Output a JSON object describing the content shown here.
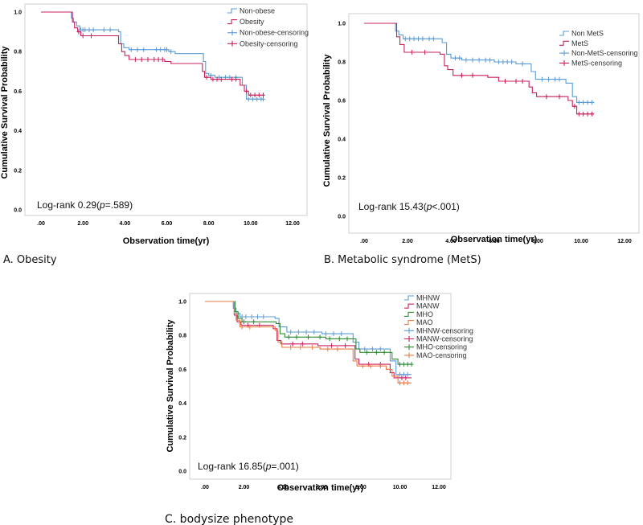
{
  "figure": {
    "captions": [
      "A. Obesity",
      "B. Metabolic syndrome (MetS)",
      "C. bodysize phenotype"
    ]
  },
  "chart_data": [
    {
      "type": "line",
      "panel": "A",
      "caption": "A. Obesity",
      "xlabel": "Observation time(yr)",
      "ylabel": "Cumulative Survival Probability",
      "xlim": [
        0,
        12
      ],
      "ylim": [
        0,
        1
      ],
      "xticks": [
        ".00",
        "2.00",
        "4.00",
        "6.00",
        "8.00",
        "10.00",
        "12.00"
      ],
      "yticks": [
        "0.0",
        "0.2",
        "0.4",
        "0.6",
        "0.8",
        "1.0"
      ],
      "legend_position": "top-center",
      "annotation": {
        "prefix": "Log-rank 0.29(",
        "p": "p",
        "suffix": "=.589)"
      },
      "series": [
        {
          "name": "Non-obese",
          "censor_name": "Non-obese-censoring",
          "color": "#5b9bd5",
          "x": [
            0,
            1.45,
            1.55,
            1.7,
            1.85,
            3.7,
            3.8,
            3.95,
            4.2,
            6.1,
            6.4,
            7.75,
            7.85,
            8.0,
            8.3,
            9.6,
            9.8
          ],
          "y": [
            1.0,
            0.97,
            0.95,
            0.93,
            0.91,
            0.9,
            0.84,
            0.82,
            0.81,
            0.8,
            0.79,
            0.75,
            0.69,
            0.68,
            0.67,
            0.63,
            0.56
          ],
          "censor": [
            1.9,
            2.0,
            2.1,
            2.3,
            2.5,
            3.0,
            3.3,
            4.3,
            4.6,
            4.9,
            5.5,
            5.7,
            5.9,
            6.0,
            6.2,
            8.1,
            8.5,
            8.8,
            9.0,
            9.3,
            9.9,
            10.1,
            10.3,
            10.5,
            10.6
          ]
        },
        {
          "name": "Obesity",
          "censor_name": "Obesity-censoring",
          "color": "#c8205e",
          "x": [
            0,
            1.5,
            1.6,
            1.75,
            1.9,
            3.7,
            3.85,
            4.0,
            4.2,
            5.9,
            6.2,
            7.7,
            7.8,
            8.1,
            9.5,
            9.7,
            9.9
          ],
          "y": [
            1.0,
            0.95,
            0.92,
            0.9,
            0.88,
            0.84,
            0.8,
            0.78,
            0.76,
            0.75,
            0.74,
            0.7,
            0.67,
            0.66,
            0.63,
            0.6,
            0.58
          ],
          "censor": [
            1.8,
            2.0,
            2.4,
            4.5,
            4.8,
            5.1,
            5.4,
            5.6,
            5.8,
            7.9,
            8.2,
            8.4,
            8.6,
            9.1,
            9.3,
            9.8,
            10.0,
            10.2,
            10.4,
            10.6
          ]
        }
      ]
    },
    {
      "type": "line",
      "panel": "B",
      "caption": "B. Metabolic syndrome (MetS)",
      "xlabel": "Observation time(yr)",
      "ylabel": "Cumulative Survival Probability",
      "xlim": [
        0,
        12
      ],
      "ylim": [
        0,
        1
      ],
      "xticks": [
        ".00",
        "2.00",
        "4.00",
        "6.00",
        "8.00",
        "10.00",
        "12.00"
      ],
      "yticks": [
        "0.0",
        "0.2",
        "0.4",
        "0.6",
        "0.8",
        "1.0"
      ],
      "legend_position": "right",
      "annotation": {
        "prefix": "Log-rank 15.43(",
        "p": "p",
        "suffix": "<.001)"
      },
      "series": [
        {
          "name": "Non MetS",
          "censor_name": "Non-MetS-censoring",
          "color": "#5b9bd5",
          "x": [
            0,
            1.45,
            1.6,
            1.8,
            3.6,
            3.8,
            4.0,
            4.5,
            6.0,
            7.0,
            7.7,
            7.9,
            9.3,
            9.6,
            9.8
          ],
          "y": [
            1.0,
            0.96,
            0.94,
            0.92,
            0.9,
            0.84,
            0.82,
            0.81,
            0.8,
            0.79,
            0.75,
            0.71,
            0.69,
            0.62,
            0.59
          ],
          "censor": [
            1.9,
            2.1,
            2.3,
            2.5,
            2.7,
            3.0,
            3.2,
            4.2,
            4.4,
            4.7,
            5.0,
            5.3,
            5.6,
            5.8,
            6.2,
            6.4,
            6.6,
            6.8,
            7.3,
            8.2,
            8.5,
            8.8,
            9.0,
            9.9,
            10.1,
            10.3,
            10.5
          ]
        },
        {
          "name": "MetS",
          "censor_name": "MetS-censoring",
          "color": "#c8205e",
          "x": [
            0,
            1.5,
            1.65,
            1.85,
            3.5,
            3.7,
            3.85,
            4.1,
            5.7,
            6.2,
            7.6,
            7.75,
            7.95,
            9.4,
            9.6,
            9.8
          ],
          "y": [
            1.0,
            0.93,
            0.89,
            0.85,
            0.84,
            0.78,
            0.76,
            0.73,
            0.72,
            0.7,
            0.67,
            0.64,
            0.62,
            0.6,
            0.57,
            0.53
          ],
          "censor": [
            2.2,
            2.8,
            4.5,
            5.0,
            6.5,
            7.0,
            7.3,
            8.4,
            9.0,
            9.7,
            9.9,
            10.1,
            10.3,
            10.5
          ]
        }
      ]
    },
    {
      "type": "line",
      "panel": "C",
      "caption": "C. bodysize phenotype",
      "xlabel": "Observation time(yr)",
      "ylabel": "Cumulative Survival Probability",
      "xlim": [
        0,
        12
      ],
      "ylim": [
        0,
        1
      ],
      "xticks": [
        ".00",
        "2.00",
        "4.00",
        "6.00",
        "8.00",
        "10.00",
        "12.00"
      ],
      "yticks": [
        "0.0",
        "0.2",
        "0.4",
        "0.6",
        "0.8",
        "1.0"
      ],
      "legend_position": "right",
      "annotation": {
        "prefix": "Log-rank 16.85(",
        "p": "p",
        "suffix": "=.001)"
      },
      "series": [
        {
          "name": "MHNW",
          "censor_name": "MHNW-censoring",
          "color": "#5b9bd5",
          "x": [
            0,
            1.45,
            1.6,
            1.8,
            3.6,
            3.8,
            4.2,
            6.0,
            7.6,
            7.9,
            9.5,
            9.8
          ],
          "y": [
            1.0,
            0.96,
            0.93,
            0.91,
            0.9,
            0.85,
            0.82,
            0.81,
            0.76,
            0.72,
            0.65,
            0.57
          ],
          "censor": [
            1.9,
            2.1,
            2.4,
            2.7,
            3.0,
            4.4,
            4.8,
            5.2,
            5.6,
            6.2,
            6.6,
            7.0,
            8.2,
            8.6,
            9.0,
            10.0,
            10.2,
            10.4
          ]
        },
        {
          "name": "MANW",
          "censor_name": "MANW-censoring",
          "color": "#c8205e",
          "x": [
            0,
            1.5,
            1.65,
            1.85,
            3.5,
            3.7,
            3.9,
            5.8,
            7.7,
            7.9,
            9.5,
            9.7
          ],
          "y": [
            1.0,
            0.92,
            0.88,
            0.86,
            0.84,
            0.77,
            0.75,
            0.74,
            0.66,
            0.63,
            0.58,
            0.55
          ],
          "censor": [
            2.2,
            2.8,
            4.5,
            5.0,
            6.5,
            7.2,
            8.4,
            9.0,
            9.9,
            10.1,
            10.3
          ]
        },
        {
          "name": "MHO",
          "censor_name": "MHO-censoring",
          "color": "#2e8b34",
          "x": [
            0,
            1.55,
            1.7,
            1.9,
            3.65,
            3.85,
            4.1,
            6.2,
            7.75,
            7.95,
            9.6,
            9.9
          ],
          "y": [
            1.0,
            0.94,
            0.9,
            0.88,
            0.87,
            0.81,
            0.79,
            0.78,
            0.72,
            0.7,
            0.66,
            0.63
          ],
          "censor": [
            2.0,
            2.5,
            4.3,
            4.7,
            5.3,
            5.9,
            6.4,
            6.9,
            7.3,
            8.3,
            8.8,
            9.2,
            10.0,
            10.2,
            10.4,
            10.6
          ]
        },
        {
          "name": "MAO",
          "censor_name": "MAO-censoring",
          "color": "#ee7a45",
          "x": [
            0,
            1.5,
            1.6,
            1.8,
            3.6,
            3.75,
            3.95,
            5.9,
            7.6,
            7.8,
            9.3,
            9.6,
            9.9
          ],
          "y": [
            1.0,
            0.93,
            0.89,
            0.85,
            0.83,
            0.76,
            0.73,
            0.72,
            0.65,
            0.62,
            0.6,
            0.56,
            0.52
          ],
          "censor": [
            1.9,
            2.3,
            4.4,
            4.9,
            5.5,
            6.3,
            6.8,
            8.1,
            8.5,
            9.0,
            10.0,
            10.2,
            10.4
          ]
        }
      ]
    }
  ]
}
